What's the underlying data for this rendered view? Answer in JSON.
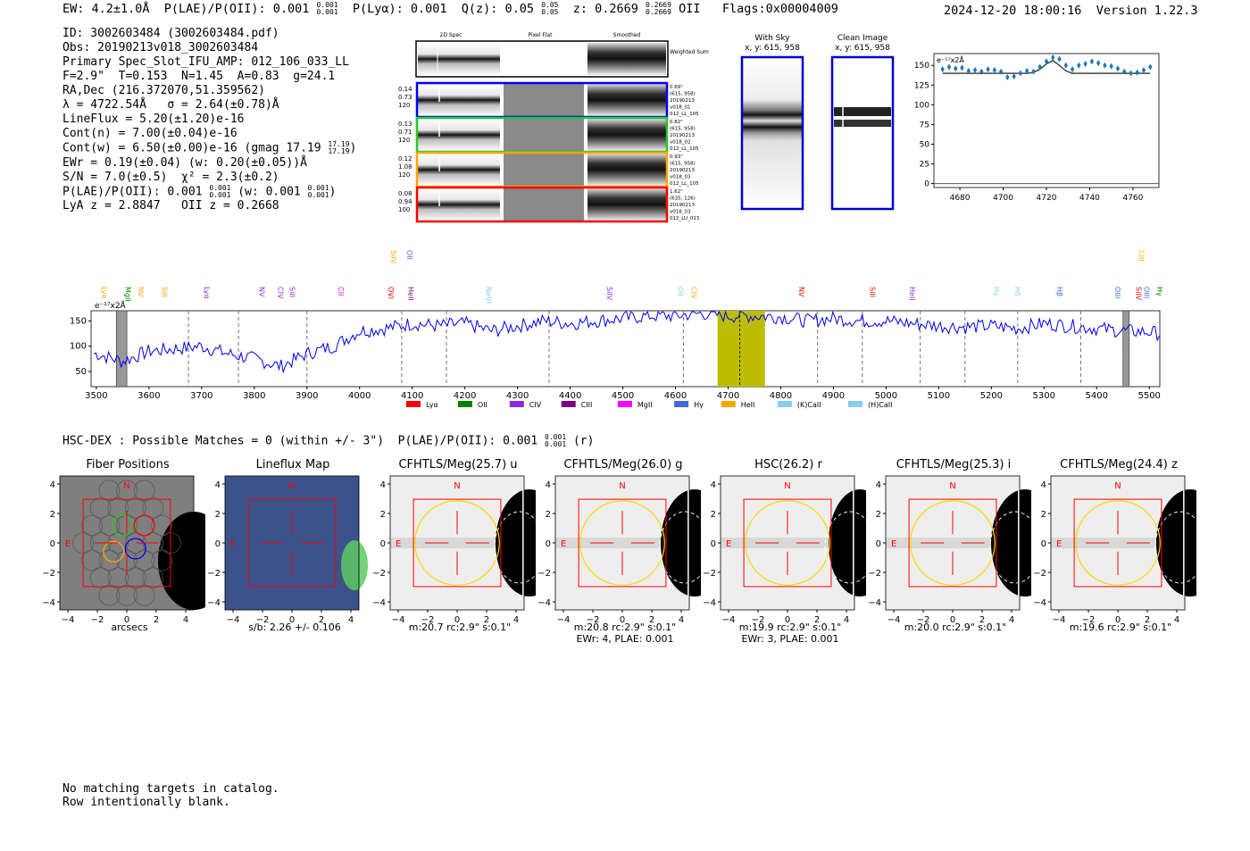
{
  "header": {
    "left": "EW: 4.2±1.0Å  P(LAE)/P(OII): 0.001",
    "left_frac_top": "0.001",
    "left_frac_bot": "0.001",
    "plya": "P(Lyα): 0.001",
    "qz": "Q(z): 0.05",
    "qz_top": "0.05",
    "qz_bot": "0.05",
    "z": "z: 0.2669",
    "z_top": "0.2669",
    "z_bot": "0.2669",
    "z_line": "OII",
    "flags": "Flags:0x00004009",
    "datetime": "2024-12-20 18:00:16",
    "version": "Version 1.22.3"
  },
  "info": {
    "id": "ID: 3002603484 (3002603484.pdf)",
    "obs": "Obs: 20190213v018_3002603484",
    "slot": "Primary Spec_Slot_IFU_AMP: 012_106_033_LL",
    "fit": "F=2.9\"  T=0.153  N=1.45  A=0.83  g=24.1",
    "radec": "RA,Dec (216.372070,51.359562)",
    "lambda": "λ = 4722.54Å   σ = 2.64(±0.78)Å",
    "lineflux": "LineFlux = 5.20(±1.20)e-16",
    "contn": "Cont(n) = 7.00(±0.04)e-16",
    "contw": "Cont(w) = 6.50(±0.00)e-16 (gmag 17.19",
    "contw_top": "17.19",
    "contw_bot": "17.19",
    "contw_end": ")",
    "ewr": "EWr = 0.19(±0.04) (w: 0.20(±0.05))Å",
    "sn": "S/N = 7.0(±0.5)  χ² = 2.3(±0.2)",
    "plae": "P(LAE)/P(OII): 0.001",
    "plae_top": "0.001",
    "plae_bot": "0.001",
    "plae_w": "(w: 0.001",
    "plae_w_top": "0.001",
    "plae_w_bot": "0.001",
    "plae_end": ")",
    "lyaz": "LyA z = 2.8847   OII z = 0.2668"
  },
  "cutouts": {
    "col_labels": [
      "2D Spec",
      "Pixel Flat",
      "Smoothed"
    ],
    "weighted_sum": "Weighted Sum",
    "rows": [
      {
        "vals": [
          "0.14",
          "0.73",
          "120"
        ],
        "color": "#0000ff",
        "notes": [
          "0.69\"",
          "(615, 958)",
          "20190213",
          "v018_01",
          "012_LL_105"
        ]
      },
      {
        "vals": [
          "0.13",
          "0.71",
          "120"
        ],
        "color": "#22cc22",
        "notes": [
          "0.82\"",
          "(615, 958)",
          "20190213",
          "v018_02",
          "012_LL_105"
        ]
      },
      {
        "vals": [
          "0.12",
          "1.08",
          "120"
        ],
        "color": "#ffa500",
        "notes": [
          "0.93\"",
          "(615, 958)",
          "20190213",
          "v018_03",
          "012_LL_105"
        ]
      },
      {
        "vals": [
          "0.08",
          "0.94",
          "100"
        ],
        "color": "#ff0000",
        "notes": [
          "1.62\"",
          "(635, 126)",
          "20190213",
          "v018_03",
          "012_LU_013"
        ]
      }
    ]
  },
  "sky_panels": [
    {
      "title": "With Sky",
      "sub": "x, y: 615, 958"
    },
    {
      "title": "Clean Image",
      "sub": "x, y: 615, 958"
    }
  ],
  "zoom_chart": {
    "unit": "e⁻¹⁷x2Å",
    "xticks": [
      "4680",
      "4700",
      "4720",
      "4740",
      "4760"
    ],
    "yticks": [
      "150",
      "125",
      "100",
      "75",
      "50",
      "25",
      "0"
    ]
  },
  "spectrum": {
    "unit": "e⁻¹⁷x2Å",
    "xticks": [
      "3500",
      "3600",
      "3700",
      "3800",
      "3900",
      "4000",
      "4100",
      "4200",
      "4300",
      "4400",
      "4500",
      "4600",
      "4700",
      "4800",
      "4900",
      "5000",
      "5100",
      "5200",
      "5300",
      "5400",
      "5500"
    ],
    "yticks": [
      "150",
      "100",
      "50"
    ],
    "legend": [
      {
        "label": "Lyα",
        "color": "#ff0000"
      },
      {
        "label": "OII",
        "color": "#008000"
      },
      {
        "label": "CIV",
        "color": "#8a2be2"
      },
      {
        "label": "CIII",
        "color": "#800080"
      },
      {
        "label": "MgII",
        "color": "#ff00ff"
      },
      {
        "label": "Hγ",
        "color": "#4169e1"
      },
      {
        "label": "HeII",
        "color": "#ffa500"
      },
      {
        "label": "(K)CaII",
        "color": "#87ceeb"
      },
      {
        "label": "(H)CaII",
        "color": "#87ceeb"
      }
    ],
    "lines_top": [
      {
        "label": "SiIV",
        "color": "#ffa500"
      },
      {
        "label": "OII",
        "color": "#4169e1"
      },
      {
        "label": "CIII",
        "color": "#ffa500"
      }
    ],
    "lines_low": [
      {
        "label": "Lyα",
        "color": "#ffa500"
      },
      {
        "label": "MgII",
        "color": "#008000"
      },
      {
        "label": "NV",
        "color": "#ffa500"
      },
      {
        "label": "SiII",
        "color": "#ffa500"
      },
      {
        "label": "Lyα",
        "color": "#8a2be2"
      },
      {
        "label": "NV",
        "color": "#8a2be2"
      },
      {
        "label": "CIV",
        "color": "#8a2be2"
      },
      {
        "label": "SiII",
        "color": "#8a2be2"
      },
      {
        "label": "CII",
        "color": "#ff00ff"
      },
      {
        "label": "OVI",
        "color": "#ff0000"
      },
      {
        "label": "HeII",
        "color": "#800080"
      },
      {
        "label": "NeVI",
        "color": "#87ceeb"
      },
      {
        "label": "SiIV",
        "color": "#8a2be2"
      },
      {
        "label": "OII",
        "color": "#87ceeb"
      },
      {
        "label": "CIV",
        "color": "#ffa500"
      },
      {
        "label": "NV",
        "color": "#ff0000"
      },
      {
        "label": "SiII",
        "color": "#ff0000"
      },
      {
        "label": "HeII",
        "color": "#8a2be2"
      },
      {
        "label": "Hγ",
        "color": "#87ceeb"
      },
      {
        "label": "Hδ",
        "color": "#87ceeb"
      },
      {
        "label": "Hβ",
        "color": "#4169e1"
      },
      {
        "label": "OIII",
        "color": "#4169e1"
      },
      {
        "label": "SiIV",
        "color": "#ff0000"
      },
      {
        "label": "OIII",
        "color": "#4169e1"
      },
      {
        "label": "Hγ",
        "color": "#008000"
      }
    ]
  },
  "hsc_line": {
    "text": "HSC-DEX : Possible Matches = 0 (within +/- 3\")  P(LAE)/P(OII): 0.001",
    "top": "0.001",
    "bot": "0.001",
    "end": "(r)"
  },
  "image_panels": [
    {
      "title": "Fiber Positions",
      "cap1": "arcsecs",
      "cap2": ""
    },
    {
      "title": "Lineflux Map",
      "cap1": "s/b: 2.26 +/- 0.106",
      "cap2": ""
    },
    {
      "title": "CFHTLS/Meg(25.7) u",
      "cap1": "m:20.7 rc:2.9\"  s:0.1\"",
      "cap2": ""
    },
    {
      "title": "CFHTLS/Meg(26.0) g",
      "cap1": "m:20.8 rc:2.9\"  s:0.1\"",
      "cap2": "EWr: 4, PLAE: 0.001"
    },
    {
      "title": "HSC(26.2) r",
      "cap1": "m:19.9 rc:2.9\"  s:0.1\"",
      "cap2": "EWr: 3, PLAE: 0.001"
    },
    {
      "title": "CFHTLS/Meg(25.3) i",
      "cap1": "m:20.0 rc:2.9\"  s:0.1\"",
      "cap2": ""
    },
    {
      "title": "CFHTLS/Meg(24.4) z",
      "cap1": "m:19.6 rc:2.9\"  s:0.1\"",
      "cap2": ""
    }
  ],
  "image_axis": {
    "ticks": [
      "4",
      "2",
      "0",
      "−2",
      "−4"
    ],
    "xticks": [
      "−4",
      "−2",
      "0",
      "2",
      "4"
    ],
    "north": "N",
    "east": "E"
  },
  "footer": {
    "line1": "No matching targets in catalog.",
    "line2": "Row intentionally blank."
  },
  "chart_data": [
    {
      "type": "line",
      "title": "",
      "ylabel": "e⁻¹⁷x2Å",
      "x": [
        3500,
        3550,
        3600,
        3650,
        3700,
        3750,
        3800,
        3850,
        3900,
        3950,
        4000,
        4050,
        4100,
        4150,
        4200,
        4250,
        4300,
        4350,
        4400,
        4450,
        4500,
        4550,
        4600,
        4650,
        4700,
        4750,
        4800,
        4850,
        4900,
        4950,
        5000,
        5050,
        5100,
        5150,
        5200,
        5250,
        5300,
        5350,
        5400,
        5450,
        5500,
        5520
      ],
      "values": [
        85,
        70,
        90,
        95,
        100,
        85,
        75,
        60,
        85,
        100,
        130,
        135,
        145,
        140,
        145,
        130,
        140,
        150,
        145,
        150,
        155,
        160,
        160,
        165,
        160,
        160,
        158,
        150,
        155,
        150,
        150,
        145,
        140,
        138,
        140,
        135,
        145,
        140,
        135,
        130,
        128,
        125
      ],
      "ylim": [
        20,
        170
      ],
      "xlim": [
        3490,
        5520
      ],
      "highlight": [
        4680,
        4770
      ],
      "marker": 4722
    },
    {
      "type": "scatter",
      "title": "",
      "ylabel": "e⁻¹⁷x2Å",
      "x": [
        4672,
        4675,
        4678,
        4681,
        4684,
        4687,
        4690,
        4693,
        4696,
        4699,
        4702,
        4705,
        4708,
        4711,
        4714,
        4717,
        4720,
        4723,
        4726,
        4729,
        4732,
        4735,
        4738,
        4741,
        4744,
        4747,
        4750,
        4753,
        4756,
        4759,
        4762,
        4765,
        4768
      ],
      "values": [
        145,
        148,
        146,
        147,
        143,
        144,
        142,
        145,
        144,
        142,
        135,
        136,
        140,
        143,
        142,
        148,
        155,
        160,
        158,
        150,
        145,
        150,
        152,
        155,
        153,
        150,
        149,
        146,
        142,
        140,
        141,
        144,
        148
      ],
      "model": [
        140,
        140,
        140,
        140,
        140,
        140,
        140,
        140,
        140,
        140,
        140,
        140,
        140,
        140,
        141,
        145,
        152,
        156,
        150,
        143,
        140,
        140,
        140,
        140,
        140,
        140,
        140,
        140,
        140,
        140,
        140,
        140,
        140
      ],
      "ylim": [
        -5,
        165
      ],
      "xlim": [
        4668,
        4772
      ]
    }
  ]
}
